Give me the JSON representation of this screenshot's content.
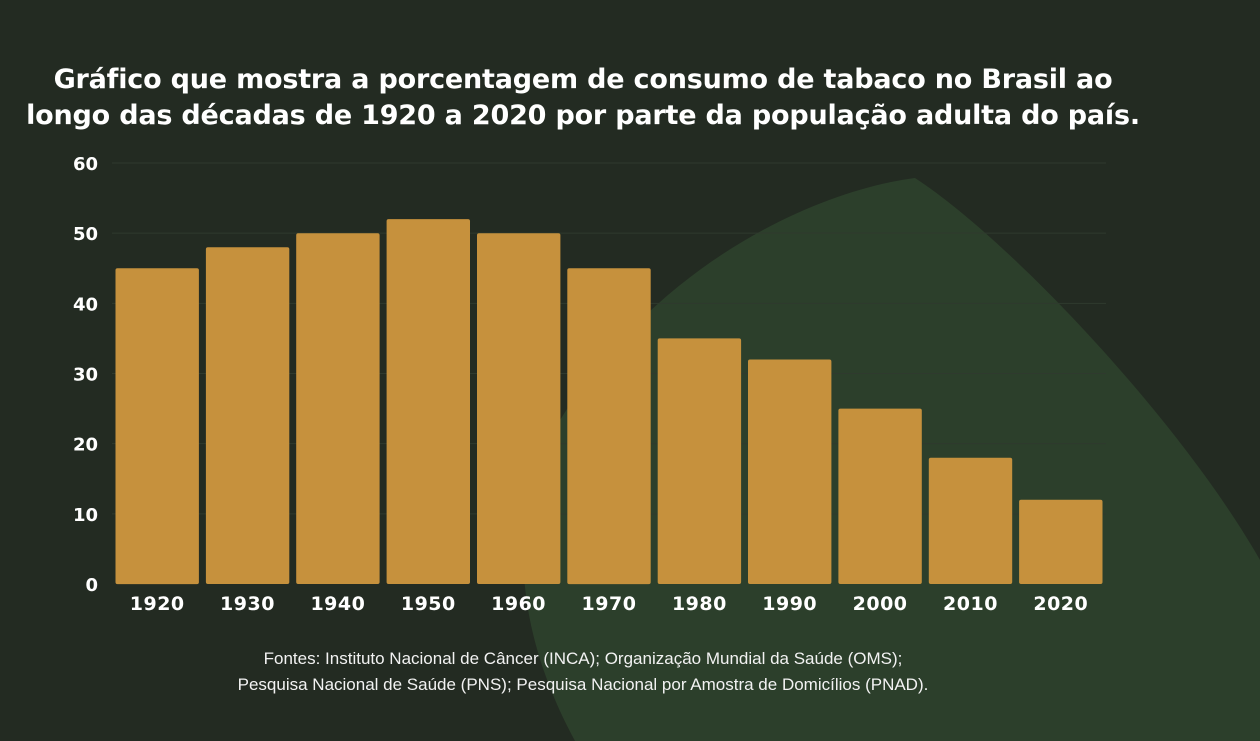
{
  "colors": {
    "background": "#232b22",
    "accent_shape": "#2c3f2b",
    "bar": "#c6913d",
    "grid": "#2f3a2e",
    "text": "#ffffff"
  },
  "title": {
    "line1": "Gráfico que mostra a porcentagem de consumo de tabaco no Brasil ao",
    "line2": "longo das décadas de 1920 a 2020 por parte da população adulta do país."
  },
  "sources": {
    "line1": "Fontes: Instituto Nacional de Câncer (INCA); Organização Mundial da Saúde (OMS);",
    "line2": "Pesquisa Nacional de Saúde (PNS); Pesquisa Nacional por Amostra de Domicílios (PNAD)."
  },
  "chart_data": {
    "type": "bar",
    "title": "Gráfico que mostra a porcentagem de consumo de tabaco no Brasil ao longo das décadas de 1920 a 2020 por parte da população adulta do país.",
    "xlabel": "",
    "ylabel": "",
    "categories": [
      "1920",
      "1930",
      "1940",
      "1950",
      "1960",
      "1970",
      "1980",
      "1990",
      "2000",
      "2010",
      "2020"
    ],
    "values": [
      45,
      48,
      50,
      52,
      50,
      45,
      35,
      32,
      25,
      18,
      12
    ],
    "ylim": [
      0,
      60
    ],
    "yticks": [
      0,
      10,
      20,
      30,
      40,
      50,
      60
    ],
    "grid": true,
    "legend": "none"
  }
}
